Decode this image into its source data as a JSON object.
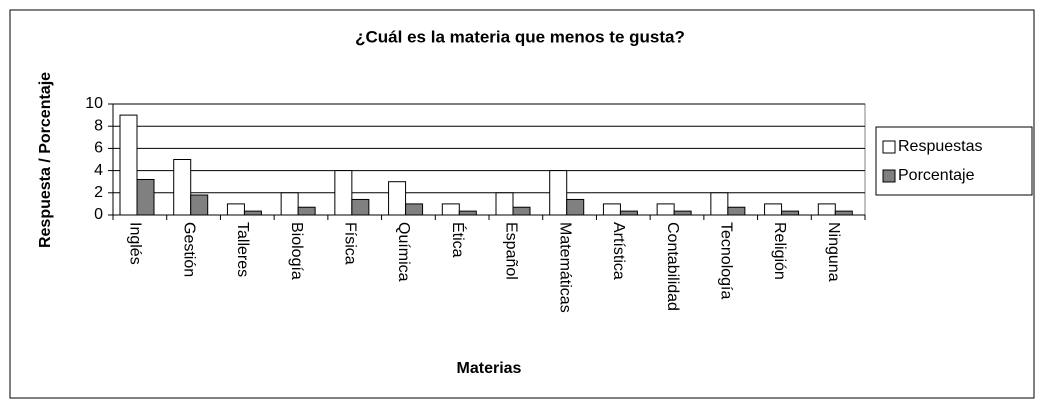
{
  "chart_data": {
    "type": "bar",
    "title": "¿Cuál es la materia que menos te gusta?",
    "x_label": "Materias",
    "y_label": "Respuesta / Porcentaje",
    "categories": [
      "Inglés",
      "Gestión",
      "Talleres",
      "Biología",
      "Física",
      "Química",
      "Ética",
      "Español",
      "Matemáticas",
      "Artística",
      "Contabilidad",
      "Tecnología",
      "Religión",
      "Ninguna"
    ],
    "series": [
      {
        "name": "Respuestas",
        "color": "#ffffff",
        "values": [
          9,
          5,
          1,
          2,
          4,
          3,
          1,
          2,
          4,
          1,
          1,
          2,
          1,
          1
        ]
      },
      {
        "name": "Porcentaje",
        "color": "#808080",
        "values": [
          3.2,
          1.8,
          0.35,
          0.7,
          1.4,
          1.0,
          0.35,
          0.7,
          1.4,
          0.35,
          0.35,
          0.7,
          0.35,
          0.35
        ]
      }
    ],
    "ylim": [
      0,
      10
    ],
    "yticks": [
      0,
      2,
      4,
      6,
      8,
      10
    ],
    "grid": true,
    "legend": "right"
  }
}
